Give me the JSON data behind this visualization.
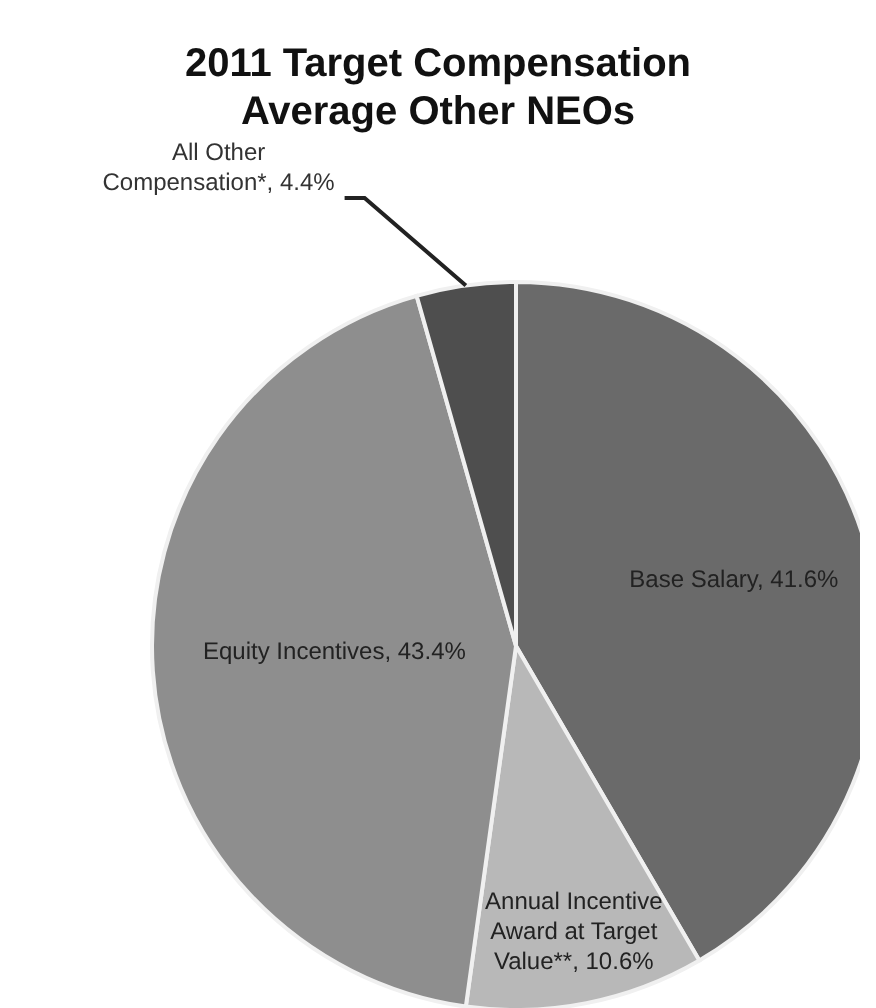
{
  "chart_data": {
    "type": "pie",
    "title": "2011 Target Compensation Average Other NEOs",
    "categories": [
      "Base Salary",
      "Annual Incentive Award at Target Value**",
      "Equity Incentives",
      "All Other Compensation*"
    ],
    "values": [
      41.6,
      10.6,
      43.4,
      4.4
    ],
    "value_labels": [
      "41.6%",
      "10.6%",
      "43.4%",
      "4.4%"
    ],
    "colors": [
      "#6a6a6a",
      "#b8b8b8",
      "#8e8e8e",
      "#4e4e4e"
    ]
  }
}
